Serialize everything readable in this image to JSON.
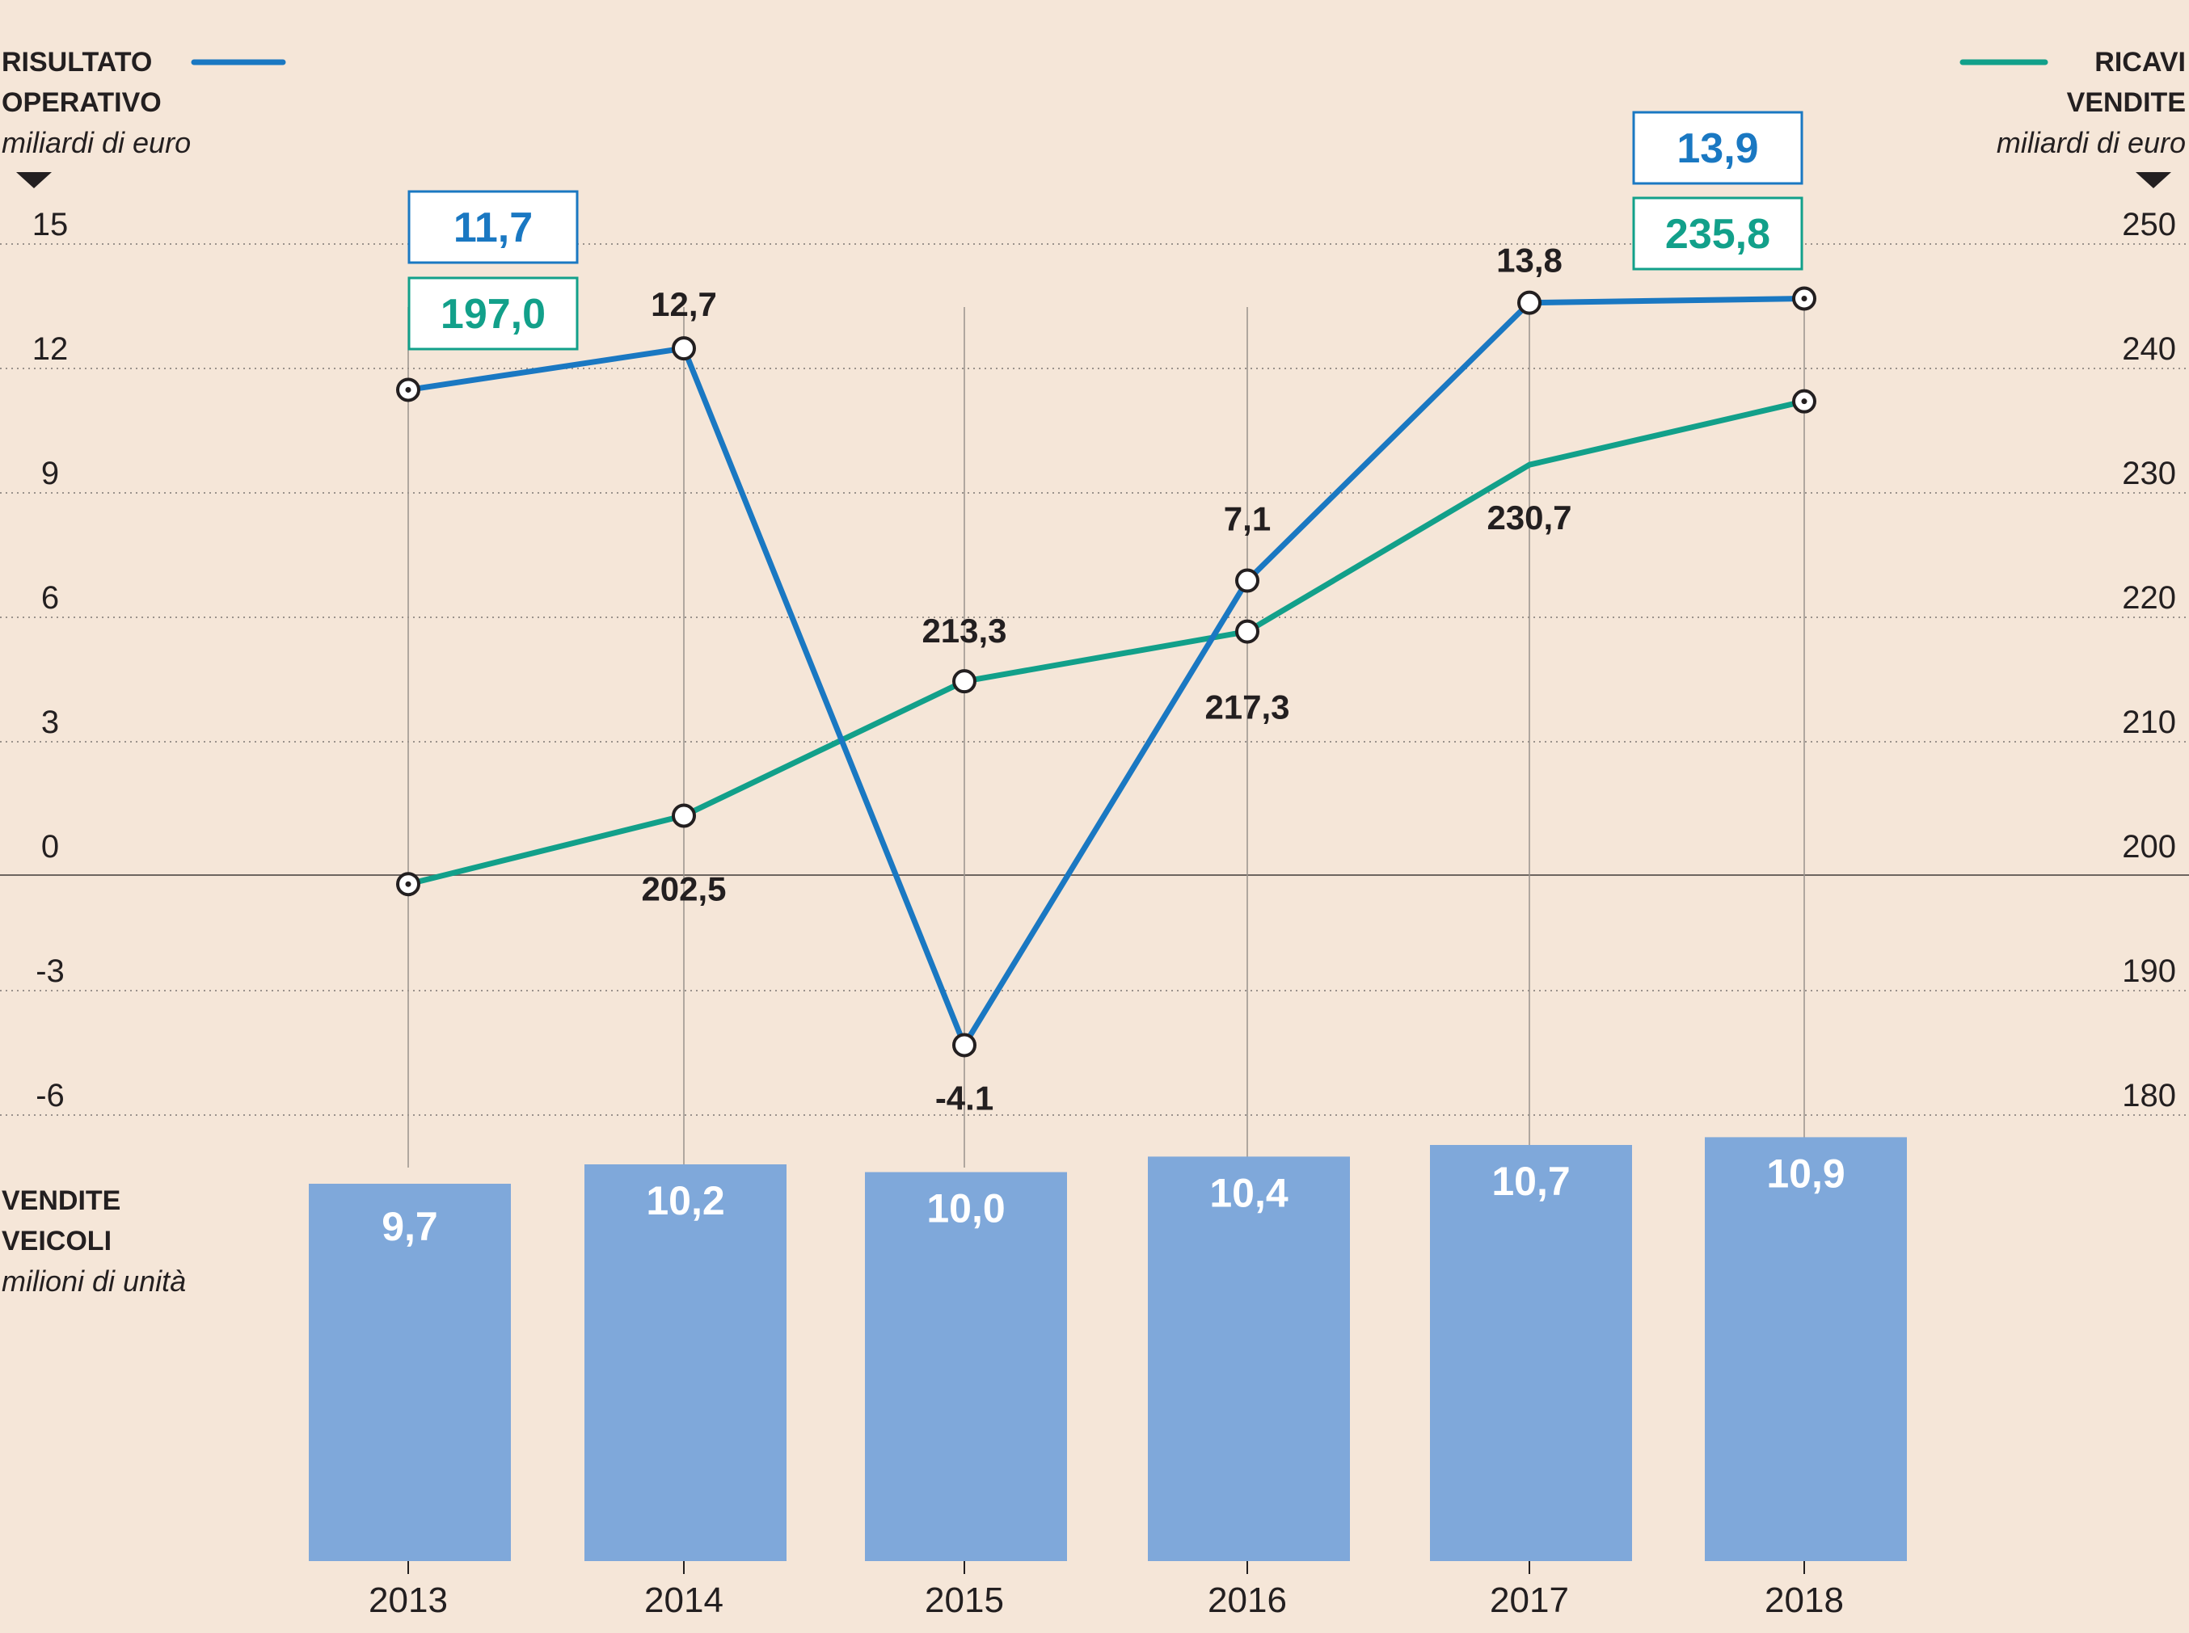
{
  "colors": {
    "background": "#f5e6d8",
    "operating": "#1a78c2",
    "revenue": "#12a08a",
    "bars": "#7fa8da",
    "text": "#231f20",
    "grid": "#9a928c"
  },
  "legend": {
    "left_title_1": "RISULTATO",
    "left_title_2": "OPERATIVO",
    "left_unit": "miliardi di euro",
    "right_title_1": "RICAVI",
    "right_title_2": "VENDITE",
    "right_unit": "miliardi di euro",
    "bars_title_1": "VENDITE",
    "bars_title_2": "VEICOLI",
    "bars_unit": "milioni di unità"
  },
  "chart_data": {
    "type": "line",
    "categories": [
      "2013",
      "2014",
      "2015",
      "2016",
      "2017",
      "2018"
    ],
    "y_left": {
      "ticks": [
        "15",
        "12",
        "9",
        "6",
        "3",
        "0",
        "-3",
        "-6"
      ],
      "range": [
        -6,
        15
      ]
    },
    "y_right": {
      "ticks": [
        "250",
        "240",
        "230",
        "220",
        "210",
        "200",
        "190",
        "180"
      ],
      "range": [
        180,
        250
      ]
    },
    "grid": true,
    "series": [
      {
        "key": "operating",
        "axis": "left",
        "values": [
          11.7,
          12.7,
          -4.1,
          7.1,
          13.8,
          13.9
        ],
        "labels": [
          "11,7",
          "12,7",
          "-4.1",
          "7,1",
          "13,8",
          "13,9"
        ]
      },
      {
        "key": "revenue",
        "axis": "right",
        "values": [
          197.0,
          202.5,
          213.3,
          217.3,
          230.7,
          235.8
        ],
        "labels": [
          "197,0",
          "202,5",
          "213,3",
          "217,3",
          "230,7",
          "235,8"
        ]
      }
    ],
    "bars": {
      "values": [
        9.7,
        10.2,
        10.0,
        10.4,
        10.7,
        10.9
      ],
      "labels": [
        "9,7",
        "10,2",
        "10,0",
        "10,4",
        "10,7",
        "10,9"
      ]
    }
  }
}
